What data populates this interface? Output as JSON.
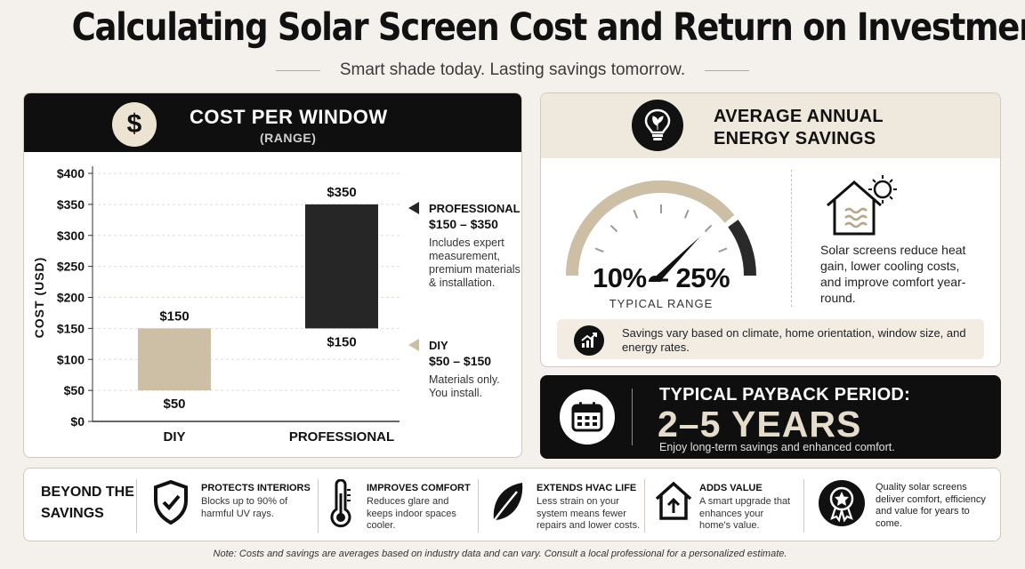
{
  "header": {
    "title": "Calculating Solar Screen Cost and Return on Investment",
    "subtitle": "Smart shade today. Lasting savings tomorrow."
  },
  "cost_panel": {
    "title": "COST PER WINDOW",
    "subtitle": "(RANGE)",
    "icon": "dollar-icon",
    "legend": [
      {
        "name": "PROFESSIONAL",
        "range": "$150 – $350",
        "description": [
          "Includes expert",
          "measurement,",
          "premium materials",
          "& installation."
        ],
        "color": "#262626"
      },
      {
        "name": "DIY",
        "range": "$50 – $150",
        "description": [
          "Materials only.",
          "You install."
        ],
        "color": "#cdbfa6"
      }
    ]
  },
  "chart_data": {
    "type": "bar",
    "title": "COST PER WINDOW",
    "subtitle": "(RANGE)",
    "ylabel": "COST (USD)",
    "ylim": [
      0,
      400
    ],
    "yticks": [
      0,
      50,
      100,
      150,
      200,
      250,
      300,
      350,
      400
    ],
    "ytick_labels": [
      "$0",
      "$50",
      "$100",
      "$150",
      "$200",
      "$250",
      "$300",
      "$350",
      "$400"
    ],
    "grid": true,
    "categories": [
      "DIY",
      "PROFESSIONAL"
    ],
    "ranges": [
      {
        "category": "DIY",
        "low": 50,
        "high": 150,
        "low_label": "$50",
        "high_label": "$150",
        "color": "#cdbfa6"
      },
      {
        "category": "PROFESSIONAL",
        "low": 150,
        "high": 350,
        "low_label": "$150",
        "high_label": "$350",
        "color": "#262626"
      }
    ]
  },
  "savings_panel": {
    "title_lines": [
      "AVERAGE ANNUAL",
      "ENERGY SAVINGS"
    ],
    "icon": "lightbulb-leaf-icon",
    "gauge_value": "10% – 25%",
    "gauge_caption": "TYPICAL RANGE",
    "gauge_level": 0.75,
    "house_icon": "house-sun-icon",
    "description": "Solar screens reduce heat gain, lower cooling costs, and improve comfort year-round.",
    "note_icon": "chart-growth-icon",
    "note": "Savings vary based on climate, home orientation, window size, and energy rates."
  },
  "payback_panel": {
    "icon": "calendar-icon",
    "title": "TYPICAL PAYBACK PERIOD:",
    "value": "2–5 YEARS",
    "note": "Enjoy long-term savings and enhanced comfort."
  },
  "benefits": {
    "heading_lines": [
      "BEYOND THE",
      "SAVINGS"
    ],
    "items": [
      {
        "icon": "shield-check-icon",
        "title": "PROTECTS INTERIORS",
        "description": "Blocks up to 90% of harmful UV rays."
      },
      {
        "icon": "thermometer-icon",
        "title": "IMPROVES COMFORT",
        "description": "Reduces glare and keeps indoor spaces cooler."
      },
      {
        "icon": "leaf-icon",
        "title": "EXTENDS HVAC LIFE",
        "description": "Less strain on your system means fewer repairs and lower costs."
      },
      {
        "icon": "house-arrow-icon",
        "title": "ADDS VALUE",
        "description": "A smart upgrade that enhances your home's value."
      }
    ],
    "closing_icon": "award-ribbon-icon",
    "closing_text": "Quality solar screens deliver comfort, efficiency and value for years to come."
  },
  "footnote": "Note: Costs and savings are averages based on industry data and can vary. Consult a local professional for a personalized estimate.",
  "colors": {
    "dark": "#0f0f0f",
    "tan": "#cdbfa6",
    "bar_dark": "#262626",
    "header_tan": "#efe8dd",
    "background": "#f4f1ec"
  }
}
